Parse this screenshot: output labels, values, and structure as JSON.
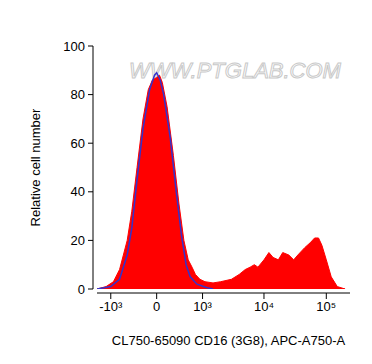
{
  "chart_data": {
    "type": "area",
    "x_label": "CL750-65090 CD16 (3G8), APC-A750-A",
    "y_label": "Relative cell number",
    "annotations": [
      "WWW.PTGLAB.COM"
    ],
    "xlim": [
      -1700,
      240000
    ],
    "ylim": [
      0,
      100
    ],
    "xticks": [
      {
        "value": -1000,
        "label": "-10³"
      },
      0,
      {
        "value": 1000,
        "label": "10³"
      },
      {
        "value": 10000,
        "label": "10⁴"
      },
      {
        "value": 100000,
        "label": "10⁵"
      }
    ],
    "yticks": [
      0,
      20,
      40,
      60,
      80,
      100
    ],
    "grid": false,
    "series": [
      {
        "type": "area",
        "color": "#ff0000",
        "x": [
          -1700,
          -1200,
          -900,
          -700,
          -500,
          -400,
          -300,
          -200,
          -120,
          -60,
          0,
          40,
          80,
          150,
          250,
          350,
          450,
          550,
          650,
          750,
          900,
          1100,
          1500,
          2000,
          3000,
          4000,
          5000,
          6000,
          7000,
          8000,
          10000,
          12000,
          14000,
          17000,
          20000,
          25000,
          30000,
          35000,
          45000,
          55000,
          65000,
          75000,
          85000,
          100000,
          120000,
          150000,
          200000
        ],
        "values": [
          0,
          1,
          3,
          8,
          20,
          32,
          50,
          70,
          82,
          86,
          87,
          88,
          85,
          75,
          55,
          35,
          20,
          12,
          9,
          6,
          4,
          3,
          2.5,
          3,
          4,
          6,
          8,
          9,
          10,
          9,
          12,
          15,
          13,
          12,
          15,
          14,
          12,
          14,
          17,
          19,
          21,
          21,
          18,
          12,
          5,
          1,
          0
        ]
      },
      {
        "type": "line",
        "color": "#3333cc",
        "x": [
          -1700,
          -1000,
          -700,
          -500,
          -400,
          -300,
          -200,
          -100,
          -30,
          0,
          50,
          100,
          200,
          300,
          400,
          500,
          600,
          800,
          1200,
          1500
        ],
        "values": [
          0,
          1,
          4,
          14,
          25,
          45,
          66,
          82,
          88,
          89,
          86,
          80,
          62,
          40,
          22,
          10,
          5,
          2,
          0.5,
          0
        ]
      }
    ]
  }
}
